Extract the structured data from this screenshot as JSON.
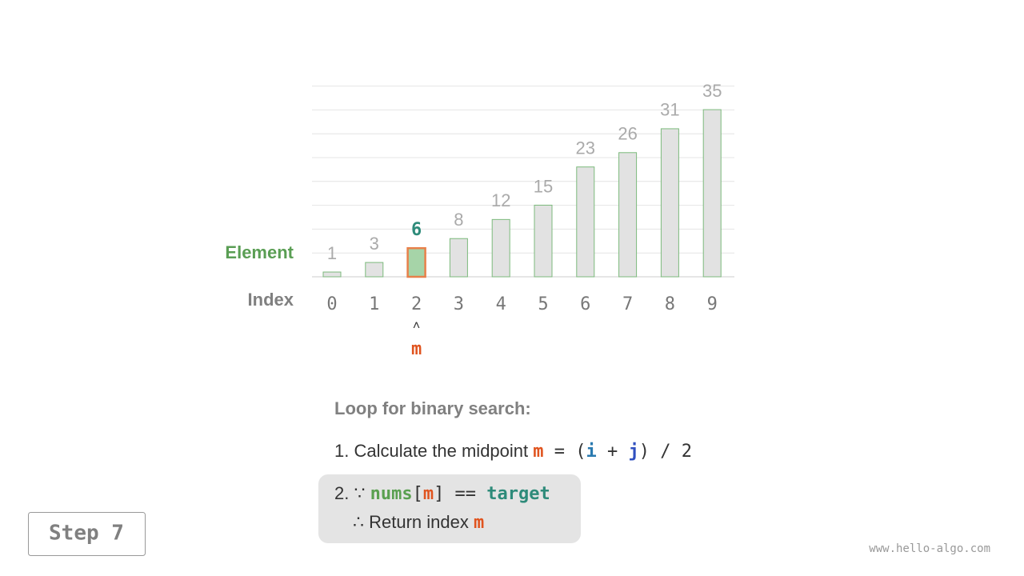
{
  "array": {
    "row_labels": {
      "element": "Element",
      "index": "Index"
    },
    "elements": [
      1,
      3,
      6,
      8,
      12,
      15,
      23,
      26,
      31,
      35
    ],
    "indices": [
      0,
      1,
      2,
      3,
      4,
      5,
      6,
      7,
      8,
      9
    ],
    "highlight_index": 2,
    "pointer_arrow": "˄",
    "pointer": "m"
  },
  "steps": {
    "title": "Loop for binary search:",
    "line1": [
      "1. Calculate the midpoint ",
      "m",
      " = (",
      "i",
      " + ",
      "j",
      ") / 2"
    ],
    "line2": [
      "2. ∵ ",
      "nums",
      "[",
      "m",
      "] == ",
      "target"
    ],
    "line3": [
      "∴ Return index ",
      "m"
    ]
  },
  "step_label": "Step 7",
  "watermark": "www.hello-algo.com"
}
